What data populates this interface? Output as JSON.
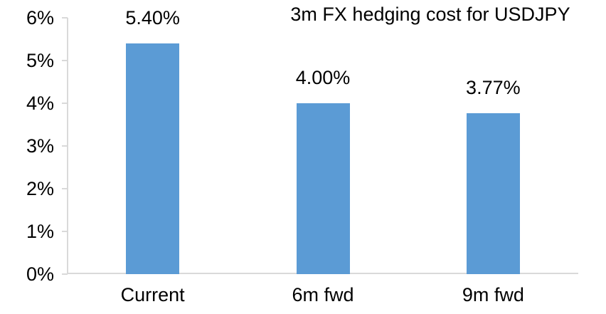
{
  "chart_data": {
    "type": "bar",
    "title": "3m FX hedging cost for USDJPY",
    "categories": [
      "Current",
      "6m fwd",
      "9m fwd"
    ],
    "values": [
      5.4,
      4.0,
      3.77
    ],
    "data_labels": [
      "5.40%",
      "4.00%",
      "3.77%"
    ],
    "y_ticks": [
      "0%",
      "1%",
      "2%",
      "3%",
      "4%",
      "5%",
      "6%"
    ],
    "y_tick_values": [
      0,
      1,
      2,
      3,
      4,
      5,
      6
    ],
    "ylim": [
      0,
      6
    ],
    "xlabel": "",
    "ylabel": "",
    "grid": false,
    "legend": "none",
    "bar_color": "#5B9BD5",
    "axis_color": "#D9D9D9",
    "text_color": "#000000"
  }
}
